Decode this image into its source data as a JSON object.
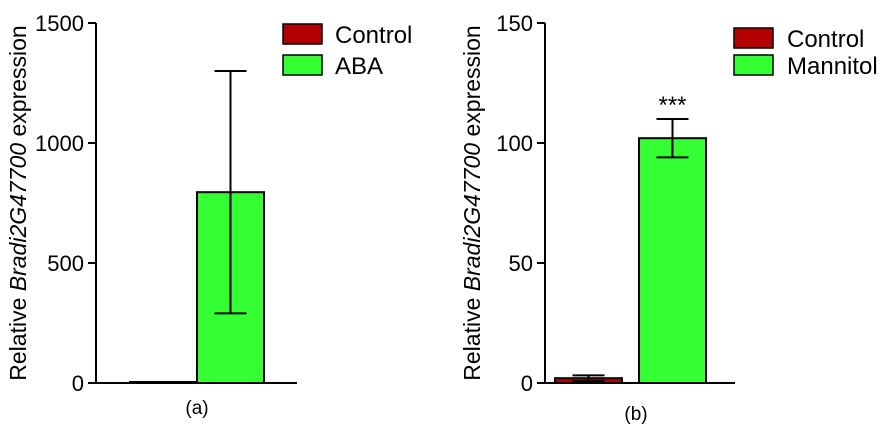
{
  "chart_data": [
    {
      "type": "bar",
      "panel_label": "(a)",
      "ylabel_prefix": "Relative ",
      "ylabel_gene": "Bradi2G47700",
      "ylabel_suffix": " expression",
      "ylim": [
        0,
        1500
      ],
      "yticks": [
        0,
        500,
        1000,
        1500
      ],
      "grid": false,
      "legend_position": "top-right",
      "series": [
        {
          "name": "Control",
          "value": 1,
          "error": 0,
          "color": "#b30000"
        },
        {
          "name": "ABA",
          "value": 795,
          "error": 505,
          "color": "#33ff33"
        }
      ],
      "annotations": []
    },
    {
      "type": "bar",
      "panel_label": "(b)",
      "ylabel_prefix": "Relative ",
      "ylabel_gene": "Bradi2G47700",
      "ylabel_suffix": " expression",
      "ylim": [
        0,
        150
      ],
      "yticks": [
        0,
        50,
        100,
        150
      ],
      "grid": false,
      "legend_position": "top-right",
      "series": [
        {
          "name": "Control",
          "value": 2,
          "error": 1.2,
          "color": "#b30000"
        },
        {
          "name": "Mannitol",
          "value": 102,
          "error": 8,
          "color": "#33ff33"
        }
      ],
      "annotations": [
        {
          "series": "Mannitol",
          "text": "***"
        }
      ]
    }
  ]
}
